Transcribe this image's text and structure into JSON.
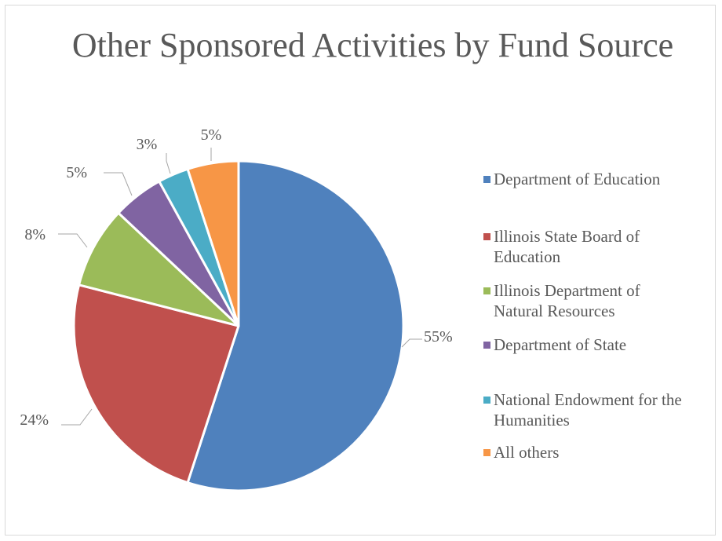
{
  "chart_data": {
    "type": "pie",
    "title": "Other Sponsored Activities by Fund Source",
    "categories": [
      "Department of Education",
      "Illinois State Board of Education",
      "Illinois Department of Natural Resources",
      "Department of State",
      "National Endowment for the Humanities",
      "All others"
    ],
    "values": [
      55,
      24,
      8,
      5,
      3,
      5
    ],
    "data_labels": [
      "55%",
      "24%",
      "8%",
      "5%",
      "3%",
      "5%"
    ],
    "colors": [
      "#4F81BD",
      "#C0504D",
      "#9BBB59",
      "#8064A2",
      "#4BACC6",
      "#F79646"
    ],
    "legend_position": "right",
    "start_angle": "12 o'clock",
    "direction": "clockwise"
  },
  "legend": {
    "items": [
      {
        "line1": "Department of Education",
        "line2": ""
      },
      {
        "line1": "Illinois State Board of",
        "line2": "Education"
      },
      {
        "line1": "Illinois Department of",
        "line2": "Natural Resources"
      },
      {
        "line1": "Department of State",
        "line2": ""
      },
      {
        "line1": "National Endowment for the",
        "line2": "Humanities"
      },
      {
        "line1": "All others",
        "line2": ""
      }
    ]
  }
}
